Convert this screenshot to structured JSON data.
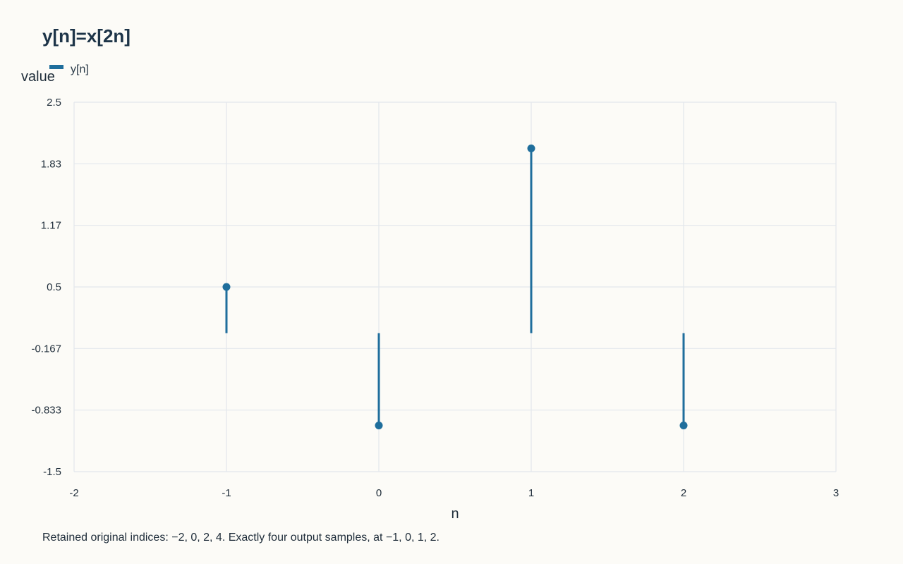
{
  "chart_data": {
    "type": "stem",
    "title": "y[n]=x[2n]",
    "xlabel": "n",
    "ylabel": "value",
    "xlim": [
      -2,
      3
    ],
    "ylim": [
      -1.5,
      2.5
    ],
    "x_ticks": [
      "-2",
      "-1",
      "0",
      "1",
      "2",
      "3"
    ],
    "y_ticks": [
      "2.5",
      "1.83",
      "1.17",
      "0.5",
      "-0.167",
      "-0.833",
      "-1.5"
    ],
    "grid": true,
    "legend_position": "top-left",
    "series": [
      {
        "name": "y[n]",
        "color": "#1f6e9c",
        "x": [
          -1,
          0,
          1,
          2
        ],
        "values": [
          0.5,
          -1,
          2,
          -1
        ]
      }
    ]
  },
  "caption": "Retained original indices: −2, 0, 2, 4. Exactly four output samples, at −1, 0, 1, 2."
}
